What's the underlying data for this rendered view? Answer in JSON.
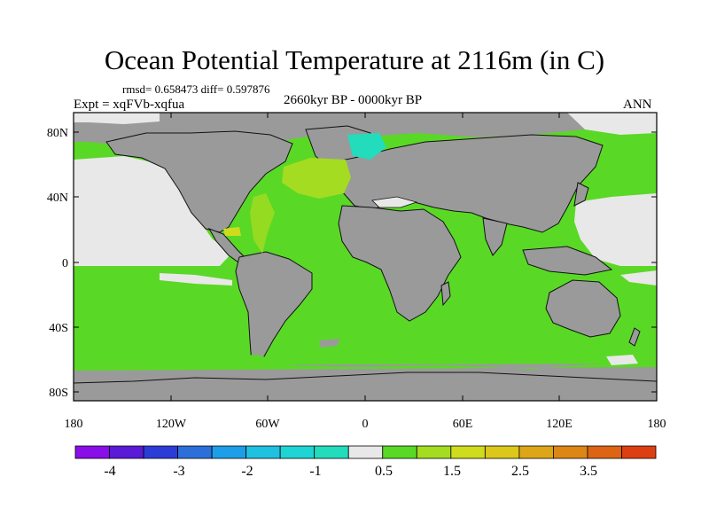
{
  "title": "Ocean Potential Temperature at 2116m (in C)",
  "stats_text": "rmsd= 0.658473 diff= 0.597876",
  "experiment": "Expt = xqFVb-xqfua",
  "period": "2660kyr BP - 0000kyr BP",
  "season": "ANN",
  "lat_labels": [
    "80N",
    "40N",
    "0",
    "40S",
    "80S"
  ],
  "lon_labels": [
    "180",
    "120W",
    "60W",
    "0",
    "60E",
    "120E",
    "180"
  ],
  "colorbar": {
    "colors": [
      "#8a0ee8",
      "#5a1ad6",
      "#2d3cd6",
      "#2d6fd8",
      "#1e9ee8",
      "#1fc0e0",
      "#1fd4d4",
      "#22dcbc",
      "#e8e8e8",
      "#5ad826",
      "#a4dc22",
      "#cfdc1e",
      "#dcc81a",
      "#dca618",
      "#dc8616",
      "#dc6414",
      "#dc4012"
    ],
    "labels": [
      "-4",
      "-3",
      "-2",
      "-1",
      "0.5",
      "1.5",
      "2.5",
      "3.5"
    ]
  },
  "palette": {
    "land": "#9a9a9a",
    "ocean_warm": "#5ad826",
    "ocean_neutral": "#e8e8e8",
    "ocean_cool": "#22dcbc",
    "ocean_yellow": "#a4dc22"
  }
}
